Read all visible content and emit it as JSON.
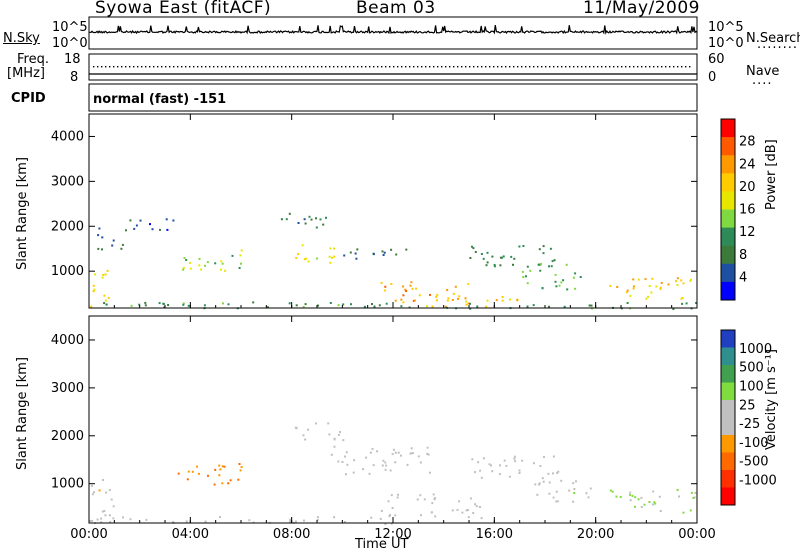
{
  "header": {
    "station": "Syowa East (fitACF)",
    "beam": "Beam 03",
    "date": "11/May/2009"
  },
  "panel_labels": {
    "nsky": "N.Sky",
    "nsearch": "N.Search",
    "nsearch_dots": "........",
    "freq_line1": "Freq.",
    "freq_line2": "[MHz]",
    "nave": "Nave",
    "nave_dots": "....",
    "cpid": "CPID",
    "mode": "normal (fast) -151"
  },
  "noise_axis": {
    "top": "10^5",
    "bottom": "10^0"
  },
  "freq_axis": {
    "left_top": "18",
    "left_bottom": "8",
    "right_top": "60",
    "right_bottom": "0"
  },
  "x_axis": {
    "label": "Time UT",
    "ticks": [
      "00:00",
      "04:00",
      "08:00",
      "12:00",
      "16:00",
      "20:00",
      "00:00"
    ]
  },
  "power_colorbar": {
    "title": "Power [dB]",
    "ticks": [
      "28",
      "24",
      "20",
      "16",
      "12",
      "8",
      "4"
    ],
    "colors": [
      "#ff0000",
      "#ff5a00",
      "#ff9900",
      "#ffcc00",
      "#e6e600",
      "#80d940",
      "#2e8b57",
      "#3c7a3c",
      "#1f4fa0",
      "#0000ff"
    ]
  },
  "velocity_colorbar": {
    "title": "Velocity [m s⁻¹]",
    "ticks": [
      "1000",
      "500",
      "100",
      "25",
      "-25",
      "-100",
      "-500",
      "-1000"
    ],
    "colors": [
      "#2040c0",
      "#2f8f8f",
      "#40a050",
      "#80dd40",
      "#c0c0c0",
      "#c0c0c0",
      "#ff9900",
      "#ff6a00",
      "#ff3000",
      "#ff0000"
    ]
  },
  "chart_data": [
    {
      "type": "heatmap",
      "title": "",
      "xlabel": "Time UT",
      "ylabel": "Slant Range [km]",
      "xlim": [
        0,
        24
      ],
      "ylim": [
        180,
        4500
      ],
      "yticks": [
        1000,
        2000,
        3000,
        4000
      ],
      "colorbar_label": "Power [dB]",
      "clim": [
        0,
        30
      ],
      "scatter_regions": [
        {
          "t0": 0.0,
          "t1": 0.8,
          "r0": 200,
          "r1": 1100,
          "level": 18
        },
        {
          "t0": 0.3,
          "t1": 1.5,
          "r0": 1500,
          "r1": 2000,
          "level": 6
        },
        {
          "t0": 1.5,
          "t1": 3.5,
          "r0": 1900,
          "r1": 2200,
          "level": 5
        },
        {
          "t0": 3.5,
          "t1": 6.0,
          "r0": 1000,
          "r1": 1500,
          "level": 14
        },
        {
          "t0": 7.5,
          "t1": 9.5,
          "r0": 1900,
          "r1": 2300,
          "level": 8
        },
        {
          "t0": 8.0,
          "t1": 10.0,
          "r0": 1200,
          "r1": 1600,
          "level": 16
        },
        {
          "t0": 9.5,
          "t1": 12.5,
          "r0": 1300,
          "r1": 1550,
          "level": 6
        },
        {
          "t0": 11.5,
          "t1": 15.0,
          "r0": 300,
          "r1": 800,
          "level": 22
        },
        {
          "t0": 13.0,
          "t1": 17.0,
          "r0": 200,
          "r1": 450,
          "level": 20
        },
        {
          "t0": 15.0,
          "t1": 18.5,
          "r0": 1100,
          "r1": 1600,
          "level": 9
        },
        {
          "t0": 17.0,
          "t1": 19.5,
          "r0": 600,
          "r1": 1200,
          "level": 12
        },
        {
          "t0": 20.5,
          "t1": 24.0,
          "r0": 400,
          "r1": 900,
          "level": 19
        },
        {
          "t0": 0.0,
          "t1": 24.0,
          "r0": 180,
          "r1": 330,
          "level": 10
        }
      ]
    },
    {
      "type": "heatmap",
      "title": "",
      "xlabel": "Time UT",
      "ylabel": "Slant Range [km]",
      "xlim": [
        0,
        24
      ],
      "ylim": [
        180,
        4500
      ],
      "yticks": [
        1000,
        2000,
        3000,
        4000
      ],
      "colorbar_label": "Velocity [m s⁻¹]",
      "clim": [
        -1000,
        1000
      ],
      "scatter_regions": [
        {
          "t0": 0.0,
          "t1": 1.0,
          "r0": 200,
          "r1": 1100,
          "level": -150
        },
        {
          "t0": 3.5,
          "t1": 6.0,
          "r0": 1000,
          "r1": 1500,
          "level": -400
        },
        {
          "t0": 8.0,
          "t1": 10.0,
          "r0": 1900,
          "r1": 2300,
          "level": 0
        },
        {
          "t0": 9.5,
          "t1": 13.5,
          "r0": 1200,
          "r1": 1800,
          "level": 0
        },
        {
          "t0": 11.5,
          "t1": 15.5,
          "r0": 300,
          "r1": 800,
          "level": 60
        },
        {
          "t0": 15.0,
          "t1": 18.5,
          "r0": 1100,
          "r1": 1600,
          "level": -60
        },
        {
          "t0": 17.5,
          "t1": 20.0,
          "r0": 600,
          "r1": 1100,
          "level": 150
        },
        {
          "t0": 20.5,
          "t1": 24.0,
          "r0": 400,
          "r1": 900,
          "level": 200
        },
        {
          "t0": 0.0,
          "t1": 12.0,
          "r0": 180,
          "r1": 330,
          "level": -80
        }
      ]
    }
  ]
}
